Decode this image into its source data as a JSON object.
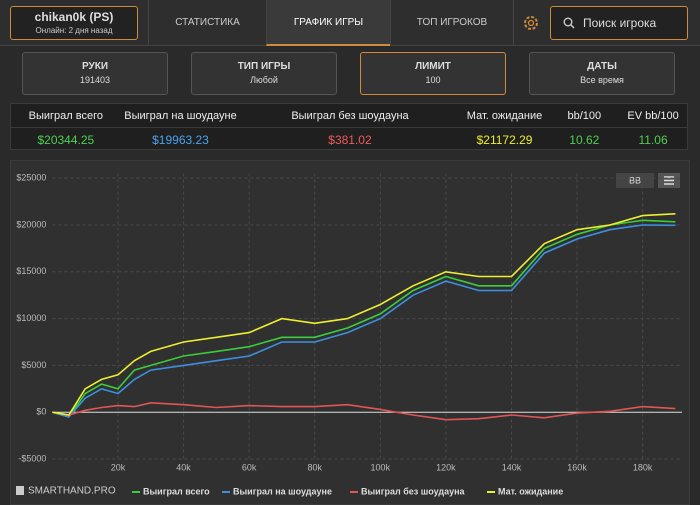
{
  "header": {
    "player": "chikan0k (PS)",
    "status": "Онлайн: 2 дня назад",
    "tabs": [
      "СТАТИСТИКА",
      "ГРАФИК ИГРЫ",
      "ТОП ИГРОКОВ"
    ],
    "search_placeholder": "Поиск игрока"
  },
  "filters": [
    {
      "label": "РУКИ",
      "value": "191403"
    },
    {
      "label": "ТИП ИГРЫ",
      "value": "Любой"
    },
    {
      "label": "ЛИМИТ",
      "value": "100"
    },
    {
      "label": "ДАТЫ",
      "value": "Все время"
    }
  ],
  "stats": {
    "headers": [
      "Выиграл всего",
      "Выиграл на шоудауне",
      "Выиграл без шоудауна",
      "Мат. ожидание",
      "bb/100",
      "EV bb/100"
    ],
    "values": [
      "$20344.25",
      "$19963.23",
      "$381.02",
      "$21172.29",
      "10.62",
      "11.06"
    ]
  },
  "chart_data": {
    "type": "line",
    "button": "BB",
    "brand": "SMARTHAND.PRO",
    "x": [
      0,
      5000,
      10000,
      15000,
      20000,
      25000,
      30000,
      40000,
      50000,
      60000,
      70000,
      80000,
      90000,
      100000,
      110000,
      120000,
      130000,
      140000,
      150000,
      160000,
      170000,
      180000,
      190000
    ],
    "series": [
      {
        "name": "Выиграл всего",
        "color": "#3ccc3c",
        "values": [
          0,
          -500,
          2000,
          3000,
          2500,
          4500,
          5000,
          6000,
          6500,
          7000,
          8000,
          8000,
          9000,
          10500,
          13000,
          14500,
          13500,
          13500,
          17500,
          19000,
          20000,
          20500,
          20344
        ]
      },
      {
        "name": "Выиграл на шоудауне",
        "color": "#3d8fe0",
        "values": [
          0,
          -500,
          1500,
          2500,
          2000,
          3500,
          4500,
          5000,
          5500,
          6000,
          7500,
          7500,
          8500,
          10000,
          12500,
          14000,
          13000,
          13000,
          17000,
          18500,
          19500,
          20000,
          19963
        ]
      },
      {
        "name": "Выиграл без шоудауна",
        "color": "#e05555",
        "values": [
          0,
          -300,
          200,
          500,
          700,
          600,
          1000,
          800,
          500,
          700,
          600,
          600,
          800,
          300,
          -300,
          -800,
          -700,
          -300,
          -600,
          -100,
          100,
          600,
          381
        ]
      },
      {
        "name": "Мат. ожидание",
        "color": "#eeee30",
        "values": [
          0,
          -300,
          2500,
          3500,
          4000,
          5500,
          6500,
          7500,
          8000,
          8500,
          10000,
          9500,
          10000,
          11500,
          13500,
          15000,
          14500,
          14500,
          18000,
          19500,
          20000,
          21000,
          21200
        ]
      }
    ],
    "xlim": [
      0,
      192000
    ],
    "ylim": [
      -5000,
      25500
    ],
    "xticks": [
      {
        "value": 20000,
        "label": "20k"
      },
      {
        "value": 40000,
        "label": "40k"
      },
      {
        "value": 60000,
        "label": "60k"
      },
      {
        "value": 80000,
        "label": "80k"
      },
      {
        "value": 100000,
        "label": "100k"
      },
      {
        "value": 120000,
        "label": "120k"
      },
      {
        "value": 140000,
        "label": "140k"
      },
      {
        "value": 160000,
        "label": "160k"
      },
      {
        "value": 180000,
        "label": "180k"
      }
    ],
    "yticks": [
      {
        "value": -5000,
        "label": "-$5000"
      },
      {
        "value": 0,
        "label": "$0"
      },
      {
        "value": 5000,
        "label": "$5000"
      },
      {
        "value": 10000,
        "label": "$10000"
      },
      {
        "value": 15000,
        "label": "$15000"
      },
      {
        "value": 20000,
        "label": "$20000"
      },
      {
        "value": 25000,
        "label": "$25000"
      }
    ],
    "grid": true
  }
}
